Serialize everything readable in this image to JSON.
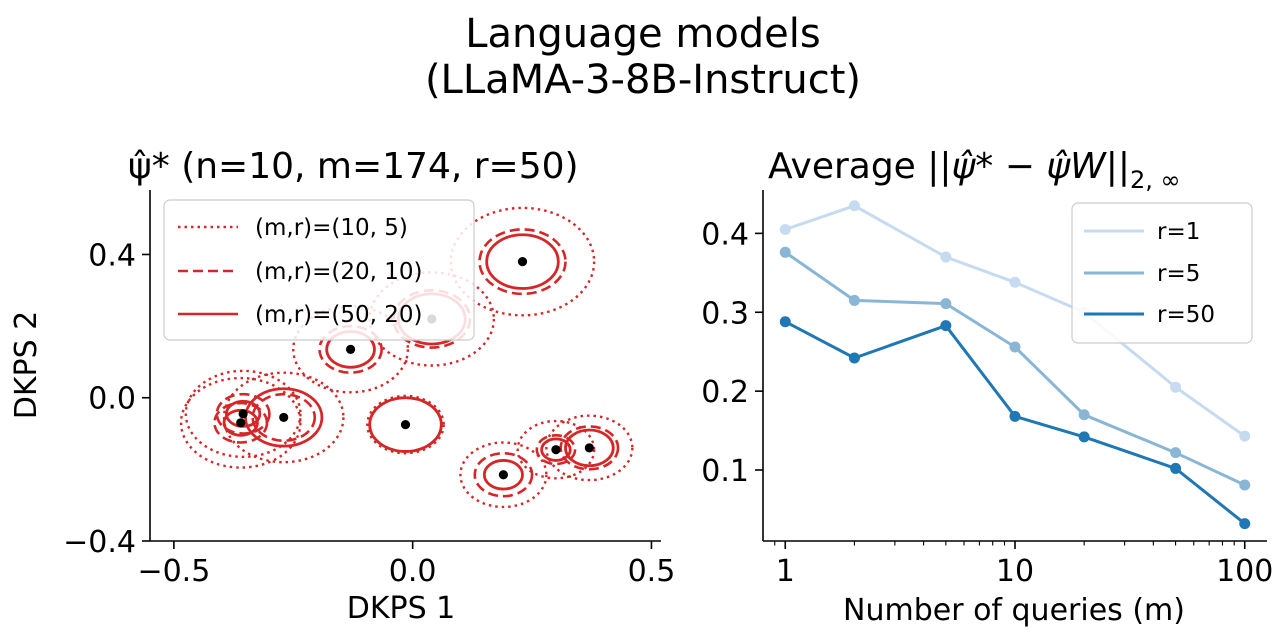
{
  "figure": {
    "title_line1": "Language models",
    "title_line2": "(LLaMA-3-8B-Instruct)"
  },
  "chart_data": [
    {
      "type": "scatter",
      "title_prefix": "ψ̂*",
      "title_suffix": " (n=10, m=174, r=50)",
      "xlabel": "DKPS 1",
      "ylabel": "DKPS 2",
      "xlim": [
        -0.55,
        0.52
      ],
      "ylim": [
        -0.4,
        0.58
      ],
      "xticks": [
        -0.5,
        0.0,
        0.5
      ],
      "xtick_labels": [
        "−0.5",
        "0.0",
        "0.5"
      ],
      "yticks": [
        -0.4,
        0.0,
        0.4
      ],
      "ytick_labels": [
        "−0.4",
        "0.0",
        "0.4"
      ],
      "legend": [
        {
          "label": "(m,r)=(10, 5)",
          "style": "dotted"
        },
        {
          "label": "(m,r)=(20, 10)",
          "style": "dashed"
        },
        {
          "label": "(m,r)=(50, 20)",
          "style": "solid"
        }
      ],
      "color": "#d62728",
      "points": [
        {
          "x": 0.23,
          "y": 0.38,
          "radii": [
            0.15,
            0.09,
            0.075
          ]
        },
        {
          "x": 0.04,
          "y": 0.22,
          "radii": [
            0.13,
            0.08,
            0.07
          ]
        },
        {
          "x": -0.13,
          "y": 0.135,
          "radii": [
            0.12,
            0.065,
            0.05
          ]
        },
        {
          "x": -0.355,
          "y": -0.045,
          "radii": [
            0.12,
            0.055,
            0.035
          ]
        },
        {
          "x": -0.36,
          "y": -0.07,
          "radii": [
            0.125,
            0.055,
            0.035
          ]
        },
        {
          "x": -0.27,
          "y": -0.055,
          "radii": [
            0.125,
            0.065,
            0.08
          ]
        },
        {
          "x": -0.015,
          "y": -0.075,
          "radii": [
            0.08,
            0.075,
            0.075
          ]
        },
        {
          "x": 0.19,
          "y": -0.215,
          "radii": [
            0.09,
            0.06,
            0.04
          ]
        },
        {
          "x": 0.3,
          "y": -0.145,
          "radii": [
            0.08,
            0.04,
            0.03
          ]
        },
        {
          "x": 0.37,
          "y": -0.14,
          "radii": [
            0.09,
            0.06,
            0.05
          ]
        }
      ]
    },
    {
      "type": "line",
      "title_prefix": "Average ||",
      "title_psi_star": "ψ̂*",
      "title_mid": " − ",
      "title_psi": "ψ̂",
      "title_w": "W",
      "title_close": "||",
      "title_sub": "2, ∞",
      "xlabel": "Number of queries (m)",
      "xscale": "log",
      "xlim": [
        0.8,
        125
      ],
      "ylim": [
        0.01,
        0.455
      ],
      "xticks": [
        1,
        10,
        100
      ],
      "xtick_labels": [
        "1",
        "10",
        "100"
      ],
      "yticks": [
        0.1,
        0.2,
        0.3,
        0.4
      ],
      "ytick_labels": [
        "0.1",
        "0.2",
        "0.3",
        "0.4"
      ],
      "x": [
        1,
        2,
        5,
        10,
        20,
        50,
        100
      ],
      "series": [
        {
          "name": "r=1",
          "color": "#c6dbef",
          "values": [
            0.405,
            0.435,
            0.37,
            0.338,
            0.3,
            0.205,
            0.143
          ]
        },
        {
          "name": "r=5",
          "color": "#8ab6d6",
          "values": [
            0.376,
            0.315,
            0.311,
            0.256,
            0.17,
            0.122,
            0.081
          ]
        },
        {
          "name": "r=50",
          "color": "#1f77b4",
          "values": [
            0.288,
            0.242,
            0.283,
            0.168,
            0.142,
            0.102,
            0.032
          ]
        }
      ]
    }
  ]
}
